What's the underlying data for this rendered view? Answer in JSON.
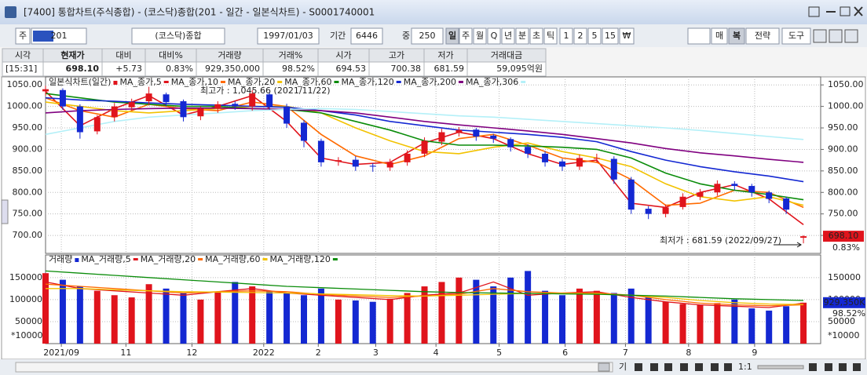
{
  "window": {
    "title": "[7400] 통합차트(주식종합) - (코스닥)종합(201 - 일간 - 일본식차트) - S0001740001"
  },
  "toolbar": {
    "items": [
      "주",
      "201",
      "(코스닥)종합",
      "1997/01/03",
      "기간",
      "6446",
      "중",
      "250",
      "일",
      "주",
      "월",
      "Q",
      "년",
      "분",
      "초",
      "틱",
      "1",
      "2",
      "5",
      "15",
      "₩",
      "매",
      "복",
      "전략",
      "도구"
    ]
  },
  "quote": {
    "headers": [
      "시각",
      "현재가",
      "대비",
      "대비%",
      "거래량",
      "거래%",
      "시가",
      "고가",
      "저가",
      "거래대금"
    ],
    "values": [
      "[15:31]",
      "698.10",
      "+5.73",
      "0.83%",
      "929,350,000",
      "98.52%",
      "694.53",
      "700.38",
      "681.59",
      "59,095억원"
    ]
  },
  "chart": {
    "type": "candlestick",
    "legend_title": "일본식차트(일간)",
    "up_color": "#e0141c",
    "down_color": "#1428d2",
    "x": [
      0,
      6,
      12,
      18,
      24,
      30,
      36,
      42,
      48,
      54,
      60,
      66,
      72,
      78,
      84,
      90,
      96,
      102,
      108,
      114,
      120,
      126,
      132,
      138,
      144,
      150,
      156,
      162,
      168,
      174,
      180,
      186,
      192,
      198,
      204,
      210,
      216,
      222,
      228,
      234,
      240,
      246,
      252,
      258,
      264
    ],
    "open": [
      1035,
      1038,
      1000,
      942,
      975,
      998,
      1012,
      1028,
      1012,
      977,
      995,
      1006,
      1000,
      1028,
      1000,
      962,
      920,
      872,
      876,
      862,
      858,
      870,
      890,
      918,
      940,
      946,
      932,
      924,
      906,
      890,
      872,
      860,
      880,
      878,
      830,
      762,
      750,
      766,
      790,
      800,
      820,
      815,
      800,
      786,
      694.53
    ],
    "high": [
      1048,
      1042,
      1005,
      980,
      1008,
      1018,
      1045.66,
      1032,
      1016,
      1000,
      1012,
      1012,
      1038,
      1032,
      1006,
      968,
      925,
      882,
      884,
      868,
      878,
      898,
      928,
      948,
      952,
      950,
      936,
      928,
      912,
      896,
      878,
      888,
      890,
      884,
      836,
      768,
      772,
      798,
      808,
      828,
      826,
      820,
      804,
      790,
      700.38
    ],
    "low": [
      1025,
      992,
      925,
      935,
      965,
      990,
      1002,
      1000,
      965,
      968,
      985,
      992,
      990,
      992,
      950,
      905,
      860,
      862,
      850,
      848,
      850,
      862,
      882,
      910,
      930,
      920,
      915,
      895,
      880,
      860,
      850,
      852,
      870,
      820,
      750,
      738,
      742,
      760,
      782,
      792,
      805,
      790,
      775,
      750,
      681.59
    ],
    "close": [
      1040,
      1000,
      940,
      975,
      1000,
      1010,
      1030,
      1010,
      975,
      995,
      1005,
      1000,
      1030,
      1000,
      960,
      920,
      870,
      875,
      860,
      860,
      870,
      890,
      920,
      940,
      945,
      930,
      925,
      905,
      890,
      870,
      860,
      880,
      880,
      830,
      760,
      750,
      765,
      790,
      800,
      820,
      815,
      800,
      785,
      760,
      698.1
    ],
    "xlim": [
      0,
      270
    ],
    "xticks": [
      {
        "value": 5.5,
        "label": "2021/09"
      },
      {
        "value": 28,
        "label": "11"
      },
      {
        "value": 51,
        "label": "12"
      },
      {
        "value": 76,
        "label": "2022"
      },
      {
        "value": 95,
        "label": "2"
      },
      {
        "value": 115,
        "label": "3"
      },
      {
        "value": 136,
        "label": "4"
      },
      {
        "value": 158,
        "label": "5"
      },
      {
        "value": 181,
        "label": "6"
      },
      {
        "value": 202,
        "label": "7"
      },
      {
        "value": 224,
        "label": "8"
      },
      {
        "value": 247,
        "label": "9"
      }
    ],
    "ylim": [
      660,
      1065
    ],
    "yticks": [
      {
        "value": 700,
        "label": "700.00"
      },
      {
        "value": 750,
        "label": "750.00"
      },
      {
        "value": 800,
        "label": "800.00"
      },
      {
        "value": 850,
        "label": "850.00"
      },
      {
        "value": 900,
        "label": "900.00"
      },
      {
        "value": 950,
        "label": "950.00"
      },
      {
        "value": 1000,
        "label": "1000.00"
      },
      {
        "value": 1050,
        "label": "1050.00"
      }
    ],
    "grid": true,
    "ma_x": [
      0,
      12,
      24,
      36,
      48,
      60,
      72,
      84,
      96,
      108,
      120,
      132,
      144,
      156,
      168,
      180,
      192,
      204,
      216,
      228,
      240,
      252,
      264
    ],
    "series": [
      {
        "name": "MA_종가,5",
        "color": "#e0141c",
        "values": [
          1035,
          955,
          995,
          1025,
          980,
          1000,
          1025,
          965,
          880,
          865,
          870,
          915,
          940,
          925,
          890,
          865,
          875,
          775,
          765,
          800,
          818,
          785,
          725
        ]
      },
      {
        "name": "MA_종가,10",
        "color": "#ff6a00",
        "values": [
          1020,
          990,
          975,
          1005,
          995,
          990,
          1010,
          1000,
          935,
          885,
          865,
          885,
          925,
          935,
          910,
          880,
          870,
          830,
          770,
          775,
          805,
          800,
          765
        ]
      },
      {
        "name": "MA_종가,20",
        "color": "#f2c200",
        "values": [
          1010,
          1000,
          990,
          985,
          990,
          995,
          1000,
          1000,
          985,
          950,
          920,
          895,
          890,
          905,
          915,
          895,
          880,
          860,
          820,
          790,
          780,
          790,
          770
        ]
      },
      {
        "name": "MA_종가,60",
        "color": "#0a8c0a",
        "values": [
          1030,
          1020,
          1010,
          1005,
          1000,
          1000,
          995,
          993,
          985,
          965,
          945,
          920,
          910,
          910,
          908,
          905,
          900,
          880,
          845,
          820,
          805,
          795,
          783
        ]
      },
      {
        "name": "MA_종가,120",
        "color": "#1428d2",
        "values": [
          1020,
          1015,
          1012,
          1008,
          1005,
          1003,
          1000,
          998,
          990,
          980,
          965,
          955,
          945,
          940,
          935,
          928,
          918,
          895,
          875,
          860,
          848,
          838,
          825
        ]
      },
      {
        "name": "MA_종가,200",
        "color": "#800080",
        "values": [
          985,
          990,
          993,
          995,
          996,
          996,
          995,
          993,
          990,
          985,
          975,
          965,
          957,
          950,
          943,
          935,
          925,
          915,
          902,
          892,
          885,
          877,
          870
        ]
      },
      {
        "name": "MA_종가,306",
        "color": "#b4f0f8",
        "values": [
          935,
          950,
          965,
          975,
          980,
          985,
          990,
          993,
          995,
          993,
          988,
          983,
          978,
          975,
          970,
          965,
          960,
          955,
          950,
          944,
          937,
          930,
          923
        ]
      }
    ],
    "annotations": {
      "high": "최고가 : 1,045.66 (2021/11/22)",
      "low": "최저가 : 681.59 (2022/09/27)"
    }
  },
  "volume_chart": {
    "type": "bar",
    "legend_title": "거래량",
    "values": [
      160000,
      145000,
      130000,
      120000,
      110000,
      105000,
      135000,
      125000,
      115000,
      100000,
      118000,
      140000,
      130000,
      120000,
      115000,
      110000,
      125000,
      100000,
      98000,
      95000,
      102000,
      115000,
      130000,
      140000,
      150000,
      145000,
      130000,
      150000,
      165000,
      120000,
      110000,
      125000,
      120000,
      115000,
      125000,
      105000,
      95000,
      90000,
      88000,
      92000,
      100000,
      80000,
      75000,
      85000,
      93000
    ],
    "ylim": [
      0,
      196000
    ],
    "yticks": [
      50000,
      100000,
      150000
    ],
    "unit_label": "*10000",
    "series": [
      {
        "name": "MA_거래량,5",
        "color": "#e0141c",
        "values": [
          140000,
          125000,
          120000,
          115000,
          110000,
          118000,
          125000,
          115000,
          110000,
          105000,
          100000,
          110000,
          115000,
          140000,
          110000,
          115000,
          118000,
          105000,
          95000,
          88000,
          85000,
          82000,
          92000
        ]
      },
      {
        "name": "MA_거래량,20",
        "color": "#ff6a00",
        "values": [
          135000,
          130000,
          125000,
          120000,
          115000,
          118000,
          120000,
          118000,
          112000,
          108000,
          105000,
          108000,
          112000,
          125000,
          118000,
          115000,
          115000,
          110000,
          100000,
          92000,
          88000,
          86000,
          88000
        ]
      },
      {
        "name": "MA_거래량,60",
        "color": "#f2c200",
        "values": [
          125000,
          125000,
          122000,
          120000,
          118000,
          117000,
          116000,
          115000,
          113000,
          111000,
          109000,
          108000,
          110000,
          112000,
          114000,
          114000,
          113000,
          110000,
          105000,
          98000,
          93000,
          90000,
          89000
        ]
      },
      {
        "name": "MA_거래량,120",
        "color": "#0a8c0a",
        "values": [
          165000,
          160000,
          155000,
          150000,
          145000,
          140000,
          135000,
          130000,
          127000,
          124000,
          121000,
          118000,
          116000,
          115000,
          114000,
          113000,
          112000,
          110000,
          108000,
          105000,
          102000,
          100000,
          98000
        ]
      }
    ],
    "last_volume": "929,350K"
  },
  "statusbar": {
    "period_button": "기",
    "zoom": "1:1"
  }
}
